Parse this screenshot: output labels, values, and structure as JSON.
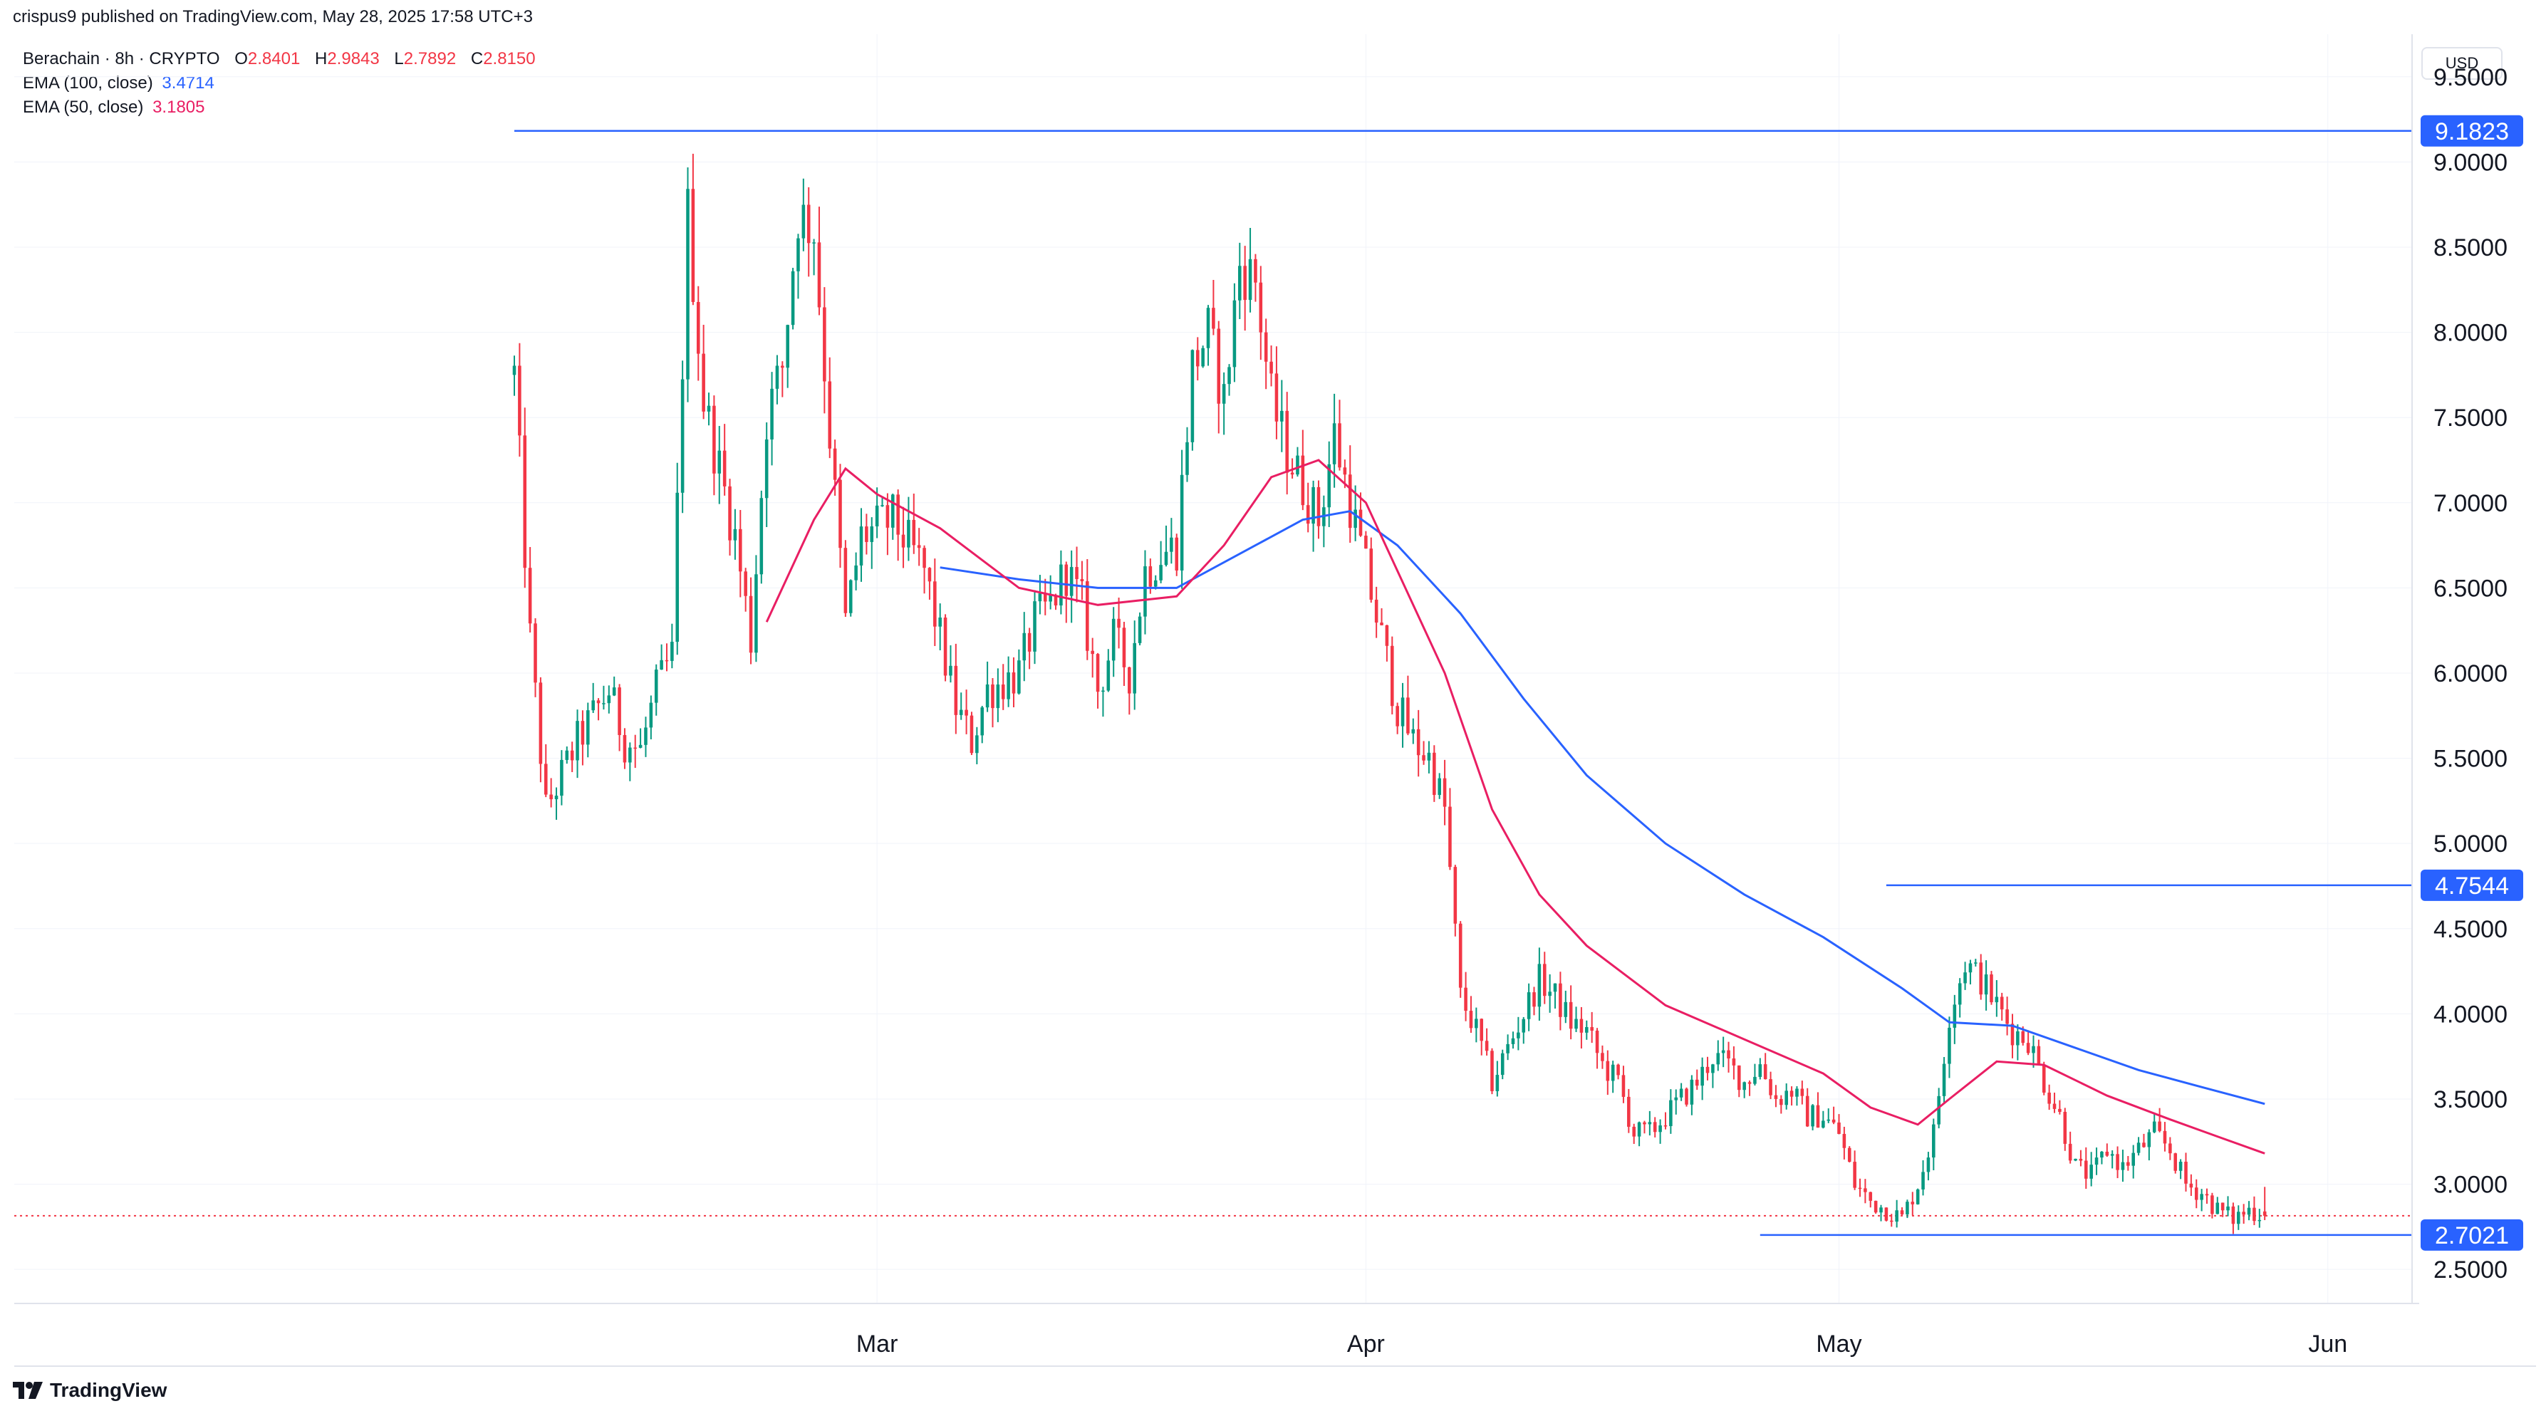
{
  "header": {
    "publisher_line": "crispus9 published on TradingView.com, May 28, 2025 17:58 UTC+3"
  },
  "legend": {
    "symbol": "Berachain · 8h · CRYPTO",
    "ohlc": {
      "o_label": "O",
      "o": "2.8401",
      "h_label": "H",
      "h": "2.9843",
      "l_label": "L",
      "l": "2.7892",
      "c_label": "C",
      "c": "2.8150"
    },
    "ema100": {
      "label": "EMA (100, close)",
      "value": "3.4714",
      "color": "#2962ff"
    },
    "ema50": {
      "label": "EMA (50, close)",
      "value": "3.1805",
      "color": "#e91e63"
    }
  },
  "currency": "USD",
  "brand": {
    "name": "TradingView"
  },
  "colors": {
    "up": "#089981",
    "down": "#f23645",
    "level": "#2962ff",
    "grid": "#f0f3fa"
  },
  "chart_data": {
    "type": "candlestick",
    "symbol": "Berachain",
    "interval": "8h",
    "x_range": [
      "2025-02-06",
      "2025-05-28"
    ],
    "ylim": [
      2.3,
      9.75
    ],
    "y_ticks": [
      "9.5000",
      "9.0000",
      "8.5000",
      "8.0000",
      "7.5000",
      "7.0000",
      "6.5000",
      "6.0000",
      "5.5000",
      "5.0000",
      "4.5000",
      "4.0000",
      "3.5000",
      "3.0000",
      "2.5000"
    ],
    "x_ticks": [
      {
        "label": "Mar",
        "date": "2025-03-01"
      },
      {
        "label": "Apr",
        "date": "2025-04-01"
      },
      {
        "label": "May",
        "date": "2025-05-01"
      },
      {
        "label": "Jun",
        "date": "2025-06-01"
      }
    ],
    "levels": [
      {
        "label": "9.1823",
        "value": 9.1823,
        "from": "2025-02-06"
      },
      {
        "label": "4.7544",
        "value": 4.7544,
        "from": "2025-05-04"
      },
      {
        "label": "2.7021",
        "value": 2.7021,
        "from": "2025-04-26"
      }
    ],
    "current_price": 2.815,
    "close_anchors": [
      {
        "date": "2025-02-06",
        "close": 7.75
      },
      {
        "date": "2025-02-07",
        "close": 6.2
      },
      {
        "date": "2025-02-08",
        "close": 5.2
      },
      {
        "date": "2025-02-09",
        "close": 5.4
      },
      {
        "date": "2025-02-10",
        "close": 5.6
      },
      {
        "date": "2025-02-12",
        "close": 5.9
      },
      {
        "date": "2025-02-13",
        "close": 5.6
      },
      {
        "date": "2025-02-14",
        "close": 5.55
      },
      {
        "date": "2025-02-15",
        "close": 5.9
      },
      {
        "date": "2025-02-16",
        "close": 6.1
      },
      {
        "date": "2025-02-17",
        "close": 8.7
      },
      {
        "date": "2025-02-18",
        "close": 7.6
      },
      {
        "date": "2025-02-19",
        "close": 7.2
      },
      {
        "date": "2025-02-20",
        "close": 6.8
      },
      {
        "date": "2025-02-21",
        "close": 6.2
      },
      {
        "date": "2025-02-22",
        "close": 7.5
      },
      {
        "date": "2025-02-23",
        "close": 7.8
      },
      {
        "date": "2025-02-24",
        "close": 8.7
      },
      {
        "date": "2025-02-25",
        "close": 8.6
      },
      {
        "date": "2025-02-26",
        "close": 7.4
      },
      {
        "date": "2025-02-27",
        "close": 6.3
      },
      {
        "date": "2025-02-28",
        "close": 6.8
      },
      {
        "date": "2025-03-02",
        "close": 6.9
      },
      {
        "date": "2025-03-04",
        "close": 6.6
      },
      {
        "date": "2025-03-05",
        "close": 6.2
      },
      {
        "date": "2025-03-06",
        "close": 5.8
      },
      {
        "date": "2025-03-07",
        "close": 5.6
      },
      {
        "date": "2025-03-08",
        "close": 5.9
      },
      {
        "date": "2025-03-10",
        "close": 6.0
      },
      {
        "date": "2025-03-11",
        "close": 6.3
      },
      {
        "date": "2025-03-12",
        "close": 6.4
      },
      {
        "date": "2025-03-13",
        "close": 6.6
      },
      {
        "date": "2025-03-14",
        "close": 6.4
      },
      {
        "date": "2025-03-15",
        "close": 5.9
      },
      {
        "date": "2025-03-16",
        "close": 6.2
      },
      {
        "date": "2025-03-17",
        "close": 6.0
      },
      {
        "date": "2025-03-18",
        "close": 6.6
      },
      {
        "date": "2025-03-19",
        "close": 6.7
      },
      {
        "date": "2025-03-20",
        "close": 6.75
      },
      {
        "date": "2025-03-21",
        "close": 7.8
      },
      {
        "date": "2025-03-22",
        "close": 8.0
      },
      {
        "date": "2025-03-23",
        "close": 7.6
      },
      {
        "date": "2025-03-24",
        "close": 8.4
      },
      {
        "date": "2025-03-25",
        "close": 8.3
      },
      {
        "date": "2025-03-26",
        "close": 7.6
      },
      {
        "date": "2025-03-27",
        "close": 7.3
      },
      {
        "date": "2025-03-28",
        "close": 7.1
      },
      {
        "date": "2025-03-29",
        "close": 6.9
      },
      {
        "date": "2025-03-30",
        "close": 7.4
      },
      {
        "date": "2025-03-31",
        "close": 7.0
      },
      {
        "date": "2025-04-01",
        "close": 6.6
      },
      {
        "date": "2025-04-02",
        "close": 6.2
      },
      {
        "date": "2025-04-03",
        "close": 5.8
      },
      {
        "date": "2025-04-04",
        "close": 5.6
      },
      {
        "date": "2025-04-05",
        "close": 5.5
      },
      {
        "date": "2025-04-06",
        "close": 5.2
      },
      {
        "date": "2025-04-07",
        "close": 4.1
      },
      {
        "date": "2025-04-08",
        "close": 3.9
      },
      {
        "date": "2025-04-09",
        "close": 3.6
      },
      {
        "date": "2025-04-10",
        "close": 3.8
      },
      {
        "date": "2025-04-11",
        "close": 4.0
      },
      {
        "date": "2025-04-12",
        "close": 4.2
      },
      {
        "date": "2025-04-13",
        "close": 4.1
      },
      {
        "date": "2025-04-14",
        "close": 3.95
      },
      {
        "date": "2025-04-15",
        "close": 3.9
      },
      {
        "date": "2025-04-16",
        "close": 3.7
      },
      {
        "date": "2025-04-17",
        "close": 3.6
      },
      {
        "date": "2025-04-18",
        "close": 3.3
      },
      {
        "date": "2025-04-19",
        "close": 3.3
      },
      {
        "date": "2025-04-20",
        "close": 3.4
      },
      {
        "date": "2025-04-21",
        "close": 3.5
      },
      {
        "date": "2025-04-22",
        "close": 3.6
      },
      {
        "date": "2025-04-23",
        "close": 3.75
      },
      {
        "date": "2025-04-24",
        "close": 3.7
      },
      {
        "date": "2025-04-25",
        "close": 3.6
      },
      {
        "date": "2025-04-26",
        "close": 3.7
      },
      {
        "date": "2025-04-27",
        "close": 3.5
      },
      {
        "date": "2025-04-28",
        "close": 3.55
      },
      {
        "date": "2025-04-29",
        "close": 3.4
      },
      {
        "date": "2025-04-30",
        "close": 3.4
      },
      {
        "date": "2025-05-01",
        "close": 3.3
      },
      {
        "date": "2025-05-02",
        "close": 3.0
      },
      {
        "date": "2025-05-03",
        "close": 2.9
      },
      {
        "date": "2025-05-04",
        "close": 2.85
      },
      {
        "date": "2025-05-05",
        "close": 2.8
      },
      {
        "date": "2025-05-06",
        "close": 3.0
      },
      {
        "date": "2025-05-07",
        "close": 3.3
      },
      {
        "date": "2025-05-08",
        "close": 4.0
      },
      {
        "date": "2025-05-09",
        "close": 4.3
      },
      {
        "date": "2025-05-10",
        "close": 4.2
      },
      {
        "date": "2025-05-11",
        "close": 4.05
      },
      {
        "date": "2025-05-12",
        "close": 3.9
      },
      {
        "date": "2025-05-13",
        "close": 3.85
      },
      {
        "date": "2025-05-14",
        "close": 3.6
      },
      {
        "date": "2025-05-15",
        "close": 3.4
      },
      {
        "date": "2025-05-16",
        "close": 3.1
      },
      {
        "date": "2025-05-17",
        "close": 3.05
      },
      {
        "date": "2025-05-18",
        "close": 3.2
      },
      {
        "date": "2025-05-19",
        "close": 3.1
      },
      {
        "date": "2025-05-20",
        "close": 3.2
      },
      {
        "date": "2025-05-21",
        "close": 3.3
      },
      {
        "date": "2025-05-22",
        "close": 3.2
      },
      {
        "date": "2025-05-23",
        "close": 3.0
      },
      {
        "date": "2025-05-24",
        "close": 2.95
      },
      {
        "date": "2025-05-25",
        "close": 2.85
      },
      {
        "date": "2025-05-26",
        "close": 2.8
      },
      {
        "date": "2025-05-27",
        "close": 2.85
      },
      {
        "date": "2025-05-28",
        "close": 2.815
      }
    ],
    "ema100": [
      {
        "date": "2025-03-05",
        "value": 6.62
      },
      {
        "date": "2025-03-10",
        "value": 6.55
      },
      {
        "date": "2025-03-15",
        "value": 6.5
      },
      {
        "date": "2025-03-20",
        "value": 6.5
      },
      {
        "date": "2025-03-25",
        "value": 6.75
      },
      {
        "date": "2025-03-28",
        "value": 6.9
      },
      {
        "date": "2025-03-31",
        "value": 6.95
      },
      {
        "date": "2025-04-03",
        "value": 6.75
      },
      {
        "date": "2025-04-07",
        "value": 6.35
      },
      {
        "date": "2025-04-11",
        "value": 5.85
      },
      {
        "date": "2025-04-15",
        "value": 5.4
      },
      {
        "date": "2025-04-20",
        "value": 5.0
      },
      {
        "date": "2025-04-25",
        "value": 4.7
      },
      {
        "date": "2025-04-30",
        "value": 4.45
      },
      {
        "date": "2025-05-05",
        "value": 4.15
      },
      {
        "date": "2025-05-08",
        "value": 3.95
      },
      {
        "date": "2025-05-12",
        "value": 3.93
      },
      {
        "date": "2025-05-16",
        "value": 3.8
      },
      {
        "date": "2025-05-20",
        "value": 3.67
      },
      {
        "date": "2025-05-24",
        "value": 3.57
      },
      {
        "date": "2025-05-28",
        "value": 3.4714
      }
    ],
    "ema50": [
      {
        "date": "2025-02-22",
        "value": 6.3
      },
      {
        "date": "2025-02-25",
        "value": 6.9
      },
      {
        "date": "2025-02-27",
        "value": 7.2
      },
      {
        "date": "2025-03-01",
        "value": 7.05
      },
      {
        "date": "2025-03-05",
        "value": 6.85
      },
      {
        "date": "2025-03-10",
        "value": 6.5
      },
      {
        "date": "2025-03-15",
        "value": 6.4
      },
      {
        "date": "2025-03-20",
        "value": 6.45
      },
      {
        "date": "2025-03-23",
        "value": 6.75
      },
      {
        "date": "2025-03-26",
        "value": 7.15
      },
      {
        "date": "2025-03-29",
        "value": 7.25
      },
      {
        "date": "2025-04-01",
        "value": 7.0
      },
      {
        "date": "2025-04-03",
        "value": 6.6
      },
      {
        "date": "2025-04-06",
        "value": 6.0
      },
      {
        "date": "2025-04-09",
        "value": 5.2
      },
      {
        "date": "2025-04-12",
        "value": 4.7
      },
      {
        "date": "2025-04-15",
        "value": 4.4
      },
      {
        "date": "2025-04-20",
        "value": 4.05
      },
      {
        "date": "2025-04-25",
        "value": 3.85
      },
      {
        "date": "2025-04-30",
        "value": 3.65
      },
      {
        "date": "2025-05-03",
        "value": 3.45
      },
      {
        "date": "2025-05-06",
        "value": 3.35
      },
      {
        "date": "2025-05-08",
        "value": 3.5
      },
      {
        "date": "2025-05-11",
        "value": 3.72
      },
      {
        "date": "2025-05-14",
        "value": 3.7
      },
      {
        "date": "2025-05-18",
        "value": 3.52
      },
      {
        "date": "2025-05-22",
        "value": 3.38
      },
      {
        "date": "2025-05-25",
        "value": 3.28
      },
      {
        "date": "2025-05-28",
        "value": 3.1805
      }
    ]
  }
}
